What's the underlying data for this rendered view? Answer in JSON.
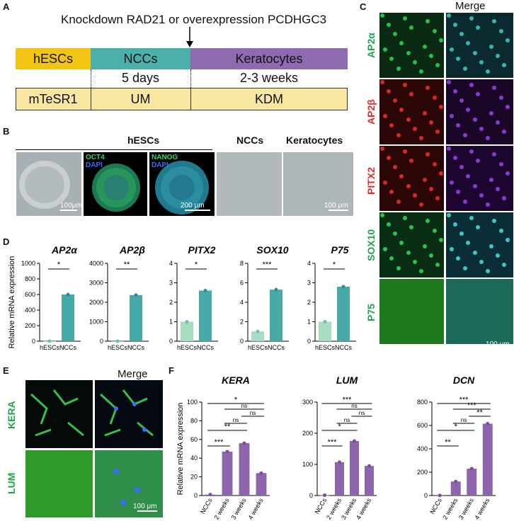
{
  "panels": {
    "A": "A",
    "B": "B",
    "C": "C",
    "D": "D",
    "E": "E",
    "F": "F"
  },
  "panelA": {
    "arrow_text": "Knockdown RAD21 or overexpression PCDHGC3",
    "stages": [
      "hESCs",
      "NCCs",
      "Keratocytes"
    ],
    "durations": [
      "5 days",
      "2-3 weeks"
    ],
    "media": [
      "mTeSR1",
      "UM",
      "KDM"
    ],
    "colors": {
      "hESCs": "#f2c414",
      "NCCs": "#4ab0a9",
      "Keratocytes": "#8e6bb0",
      "media": "#f9e79f"
    }
  },
  "panelB": {
    "group_labels": [
      "hESCs",
      "NCCs",
      "Keratocytes"
    ],
    "stain1": [
      "OCT4",
      "DAPI"
    ],
    "stain2": [
      "NANOG",
      "DAPI"
    ],
    "scales": [
      "100μm",
      "200 μm",
      "100 μm"
    ]
  },
  "panelC": {
    "merge": "Merge",
    "rows": [
      "AP2α",
      "AP2β",
      "PITX2",
      "SOX10",
      "P75"
    ],
    "row_colors": [
      "#1fa64a",
      "#e52b2b",
      "#e52b2b",
      "#1fa64a",
      "#1fa64a"
    ],
    "scale": "100 μm"
  },
  "panelE": {
    "merge": "Merge",
    "rows": [
      "KERA",
      "LUM"
    ],
    "scale": "100 μm"
  },
  "chart_data": [
    {
      "type": "bar",
      "title": "AP2α",
      "ylabel": "Relative mRNA expression",
      "categories": [
        "hESCs",
        "NCCs"
      ],
      "values": [
        1,
        600
      ],
      "ylim": [
        0,
        1000
      ],
      "yticks": [
        0,
        200,
        400,
        600,
        800,
        1000
      ],
      "sig": "*"
    },
    {
      "type": "bar",
      "title": "AP2β",
      "categories": [
        "hESCs",
        "NCCs"
      ],
      "values": [
        1,
        2370
      ],
      "ylim": [
        0,
        4000
      ],
      "yticks": [
        0,
        1000,
        2000,
        3000,
        4000
      ],
      "sig": "**"
    },
    {
      "type": "bar",
      "title": "PITX2",
      "categories": [
        "hESCs",
        "NCCs"
      ],
      "values": [
        1,
        2.6
      ],
      "ylim": [
        0,
        4
      ],
      "yticks": [
        0,
        1,
        2,
        3,
        4
      ],
      "sig": "*"
    },
    {
      "type": "bar",
      "title": "SOX10",
      "categories": [
        "hESCs",
        "NCCs"
      ],
      "values": [
        1,
        5.3
      ],
      "ylim": [
        0,
        8
      ],
      "yticks": [
        0,
        2,
        4,
        6,
        8
      ],
      "sig": "***"
    },
    {
      "type": "bar",
      "title": "P75",
      "categories": [
        "hESCs",
        "NCCs"
      ],
      "values": [
        1,
        2.8
      ],
      "ylim": [
        0,
        4
      ],
      "yticks": [
        0,
        1,
        2,
        3,
        4
      ],
      "sig": "*"
    },
    {
      "type": "bar",
      "title": "KERA",
      "ylabel": "Relative mRNA expression",
      "categories": [
        "NCCs",
        "2 weeks",
        "3 weeks",
        "4 weeks"
      ],
      "values": [
        1,
        47,
        56,
        24
      ],
      "ylim": [
        0,
        100
      ],
      "yticks": [
        0,
        20,
        40,
        60,
        80,
        100
      ],
      "sigs": [
        "***",
        "**",
        "ns",
        "*",
        "ns",
        "ns"
      ]
    },
    {
      "type": "bar",
      "title": "LUM",
      "categories": [
        "NCCs",
        "2 weeks",
        "3 weeks",
        "4 weeks"
      ],
      "values": [
        1,
        107,
        175,
        95
      ],
      "ylim": [
        0,
        300
      ],
      "yticks": [
        0,
        100,
        200,
        300
      ],
      "sigs": [
        "***",
        "*",
        "ns",
        "***",
        "ns",
        "ns"
      ]
    },
    {
      "type": "bar",
      "title": "DCN",
      "categories": [
        "NCCs",
        "2 weeks",
        "3 weeks",
        "4 weeks"
      ],
      "values": [
        1,
        120,
        230,
        615
      ],
      "ylim": [
        0,
        800
      ],
      "yticks": [
        0,
        200,
        400,
        600,
        800
      ],
      "sigs": [
        "**",
        "*",
        "ns",
        "***",
        "***",
        "**"
      ]
    }
  ]
}
